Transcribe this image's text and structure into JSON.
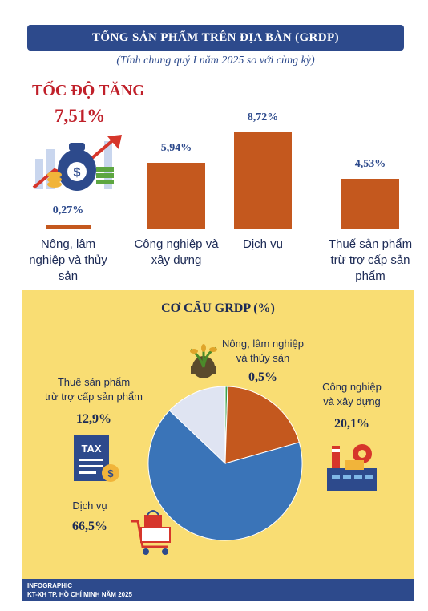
{
  "header": {
    "title": "TỔNG SẢN PHẨM TRÊN ĐỊA BÀN (GRDP)",
    "subtitle": "(Tính chung quý I năm 2025 so với cùng kỳ)"
  },
  "growth": {
    "heading": "TỐC ĐỘ TĂNG",
    "total": "7,51%"
  },
  "structure": {
    "heading": "CƠ CẤU GRDP (%)"
  },
  "footer": {
    "line1": "INFOGRAPHIC",
    "line2": "KT-XH TP. HỒ CHÍ MINH NĂM 2025"
  },
  "icons": [
    "money-bag-icon",
    "growth-arrow-icon",
    "plant-gear-icon",
    "factory-icon",
    "tax-document-icon",
    "shopping-cart-icon"
  ],
  "colors": {
    "bar": "#c4581e",
    "header": "#2d4a8c",
    "accent_red": "#c0202a",
    "panel": "#f9dd73",
    "pie_agriculture": "#3fa34d",
    "pie_industry": "#c4581e",
    "pie_services": "#3a74b8",
    "pie_tax": "#dfe4f2"
  },
  "chart_data": [
    {
      "type": "bar",
      "categories": [
        "Nông, lâm nghiệp và thủy sản",
        "Công nghiệp và xây dựng",
        "Dịch vụ",
        "Thuế sản phẩm trừ trợ cấp sản phẩm"
      ],
      "category_lines": [
        [
          "Nông, lâm",
          "nghiệp và thủy",
          "sản"
        ],
        [
          "Công nghiệp và",
          "xây dựng"
        ],
        [
          "Dịch vụ"
        ],
        [
          "Thuế sản phẩm",
          "trừ trợ cấp sản",
          "phẩm"
        ]
      ],
      "values": [
        0.27,
        5.94,
        8.72,
        4.53
      ],
      "value_labels": [
        "0,27%",
        "5,94%",
        "8,72%",
        "4,53%"
      ],
      "title": "TỐC ĐỘ TĂNG",
      "ylim": [
        0,
        9
      ]
    },
    {
      "type": "pie",
      "title": "CƠ CẤU GRDP (%)",
      "slices": [
        {
          "label_lines": [
            "Nông, lâm nghiệp",
            "và thủy sản"
          ],
          "value": 0.5,
          "value_label": "0,5%"
        },
        {
          "label_lines": [
            "Công nghiệp",
            "và xây dựng"
          ],
          "value": 20.1,
          "value_label": "20,1%"
        },
        {
          "label_lines": [
            "Dịch vụ"
          ],
          "value": 66.5,
          "value_label": "66,5%"
        },
        {
          "label_lines": [
            "Thuế sản phẩm",
            "trừ trợ cấp sản phẩm"
          ],
          "value": 12.9,
          "value_label": "12,9%"
        }
      ]
    }
  ]
}
